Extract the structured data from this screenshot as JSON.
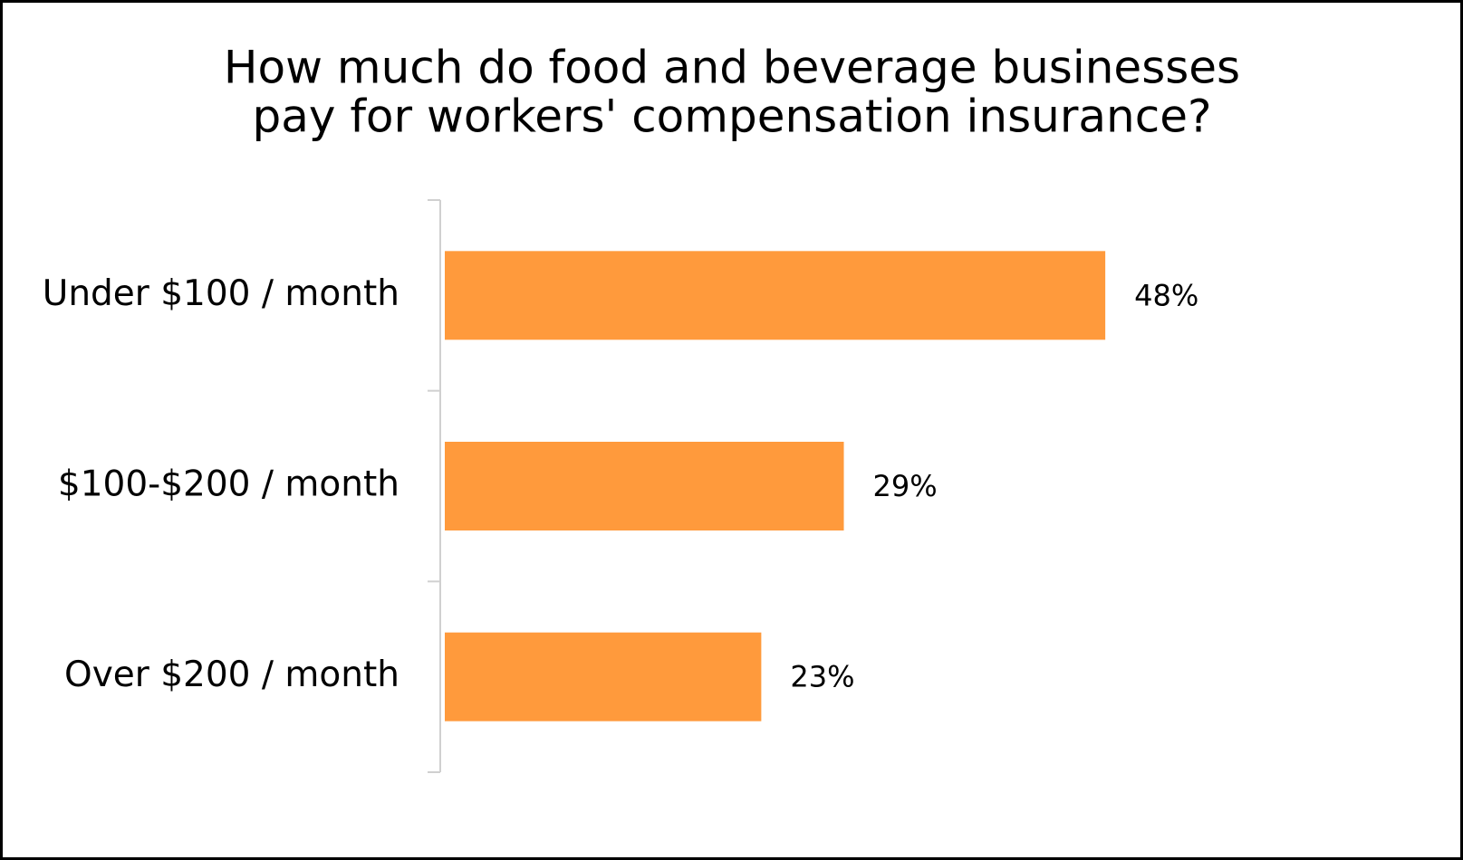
{
  "chart_data": {
    "type": "bar",
    "orientation": "horizontal",
    "title": [
      "How much do food and beverage businesses",
      "pay for workers' compensation insurance?"
    ],
    "categories": [
      "Under $100 / month",
      "$100-$200 / month",
      "Over $200 / month"
    ],
    "values": [
      48,
      29,
      23
    ],
    "value_labels": [
      "48%",
      "29%",
      "23%"
    ],
    "color": "#ff9a3c"
  }
}
